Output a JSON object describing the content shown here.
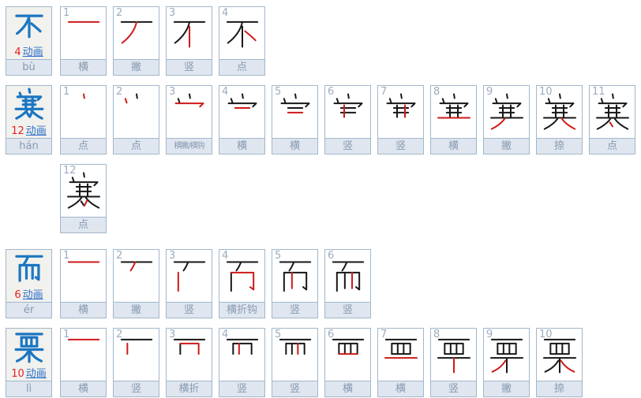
{
  "labels": {
    "animation": "动画"
  },
  "colors": {
    "border": "#a2b7cb",
    "main_bg": "#f1f1ee",
    "bar_bg": "#dfe6ef",
    "bar_text": "#8799b1",
    "step_number": "#9cabbf",
    "char_blue": "#1c76c2",
    "count_red": "#e32222",
    "link_blue": "#2e6ec8",
    "stroke_black": "#171717",
    "stroke_red": "#cd1a1a"
  },
  "phrase": "不寒而栗",
  "characters": [
    {
      "char": "不",
      "pinyin": "bù",
      "stroke_count": "4",
      "steps": [
        {
          "n": "1",
          "label": "横"
        },
        {
          "n": "2",
          "label": "撇"
        },
        {
          "n": "3",
          "label": "竖"
        },
        {
          "n": "4",
          "label": "点"
        }
      ]
    },
    {
      "char": "寒",
      "pinyin": "hán",
      "stroke_count": "12",
      "steps": [
        {
          "n": "1",
          "label": "点"
        },
        {
          "n": "2",
          "label": "点"
        },
        {
          "n": "3",
          "label": "横撇/横钩"
        },
        {
          "n": "4",
          "label": "横"
        },
        {
          "n": "5",
          "label": "横"
        },
        {
          "n": "6",
          "label": "竖"
        },
        {
          "n": "7",
          "label": "竖"
        },
        {
          "n": "8",
          "label": "横"
        },
        {
          "n": "9",
          "label": "撇"
        },
        {
          "n": "10",
          "label": "捺"
        },
        {
          "n": "11",
          "label": "点"
        },
        {
          "n": "12",
          "label": "点"
        }
      ]
    },
    {
      "char": "而",
      "pinyin": "ér",
      "stroke_count": "6",
      "steps": [
        {
          "n": "1",
          "label": "横"
        },
        {
          "n": "2",
          "label": "撇"
        },
        {
          "n": "3",
          "label": "竖"
        },
        {
          "n": "4",
          "label": "横折钩"
        },
        {
          "n": "5",
          "label": "竖"
        },
        {
          "n": "6",
          "label": "竖"
        }
      ]
    },
    {
      "char": "栗",
      "pinyin": "lì",
      "stroke_count": "10",
      "steps": [
        {
          "n": "1",
          "label": "横"
        },
        {
          "n": "2",
          "label": "竖"
        },
        {
          "n": "3",
          "label": "横折"
        },
        {
          "n": "4",
          "label": "竖"
        },
        {
          "n": "5",
          "label": "竖"
        },
        {
          "n": "6",
          "label": "横"
        },
        {
          "n": "7",
          "label": "横"
        },
        {
          "n": "8",
          "label": "竖"
        },
        {
          "n": "9",
          "label": "撇"
        },
        {
          "n": "10",
          "label": "捺"
        }
      ]
    }
  ],
  "stroke_paths": {
    "不": [
      "M7,13 H53",
      "M30,13 C28,24 20,36 8,45",
      "M30,20 V51",
      "M34,27 C40,32 45,36 50,41"
    ],
    "寒": [
      "M30,3 L31,9",
      "M13,10 L15,16",
      "M9,17 H51 L46,22",
      "M19,24 H41",
      "M19,31 H41",
      "M24,20 V38",
      "M36,20 V38",
      "M6,39 H54",
      "M27,40 C23,46 15,52 7,56",
      "M33,40 C37,46 45,52 53,56",
      "M26,46 L30,52",
      "M35,45 L31,53"
    ],
    "而": [
      "M7,9 H53",
      "M28,9 C26,14 24,18 21,22",
      "M13,25 V53",
      "M13,25 H47 V51 L42,47",
      "M25,25 V49",
      "M36,25 V49"
    ],
    "栗": [
      "M7,7 H53",
      "M16,13 V29",
      "M16,13 H44 V29",
      "M25,13 V29",
      "M34,13 V29",
      "M16,29 H44",
      "M6,35 H54",
      "M30,35 V57",
      "M28,39 C24,46 17,52 8,56",
      "M32,39 C36,46 43,52 52,56"
    ]
  }
}
